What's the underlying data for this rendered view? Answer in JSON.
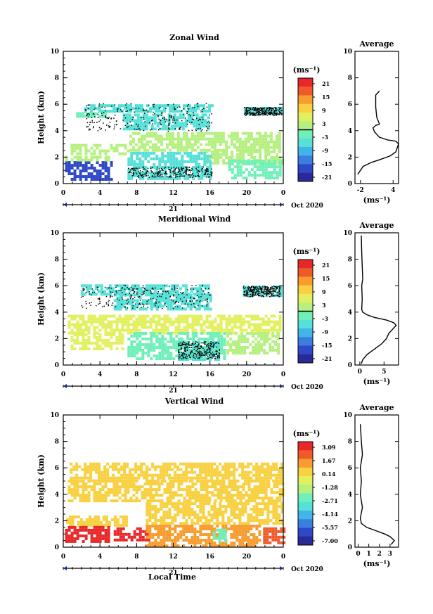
{
  "figure": {
    "x_axis_label": "Local Time",
    "date_label": "Oct 2020",
    "day_label": "21",
    "unit_label": "(ms⁻¹)",
    "average_title": "Average",
    "y_axis_label": "Height (km)"
  },
  "chart_data": [
    {
      "type": "heatmap",
      "title": "Zonal Wind",
      "ylabel": "Height (km)",
      "xlabel": "",
      "x_ticks": [
        "0",
        "4",
        "8",
        "12",
        "16",
        "20",
        "0"
      ],
      "xlim": [
        0,
        24
      ],
      "y_ticks": [
        "0",
        "2",
        "4",
        "6",
        "8",
        "10"
      ],
      "ylim": [
        0,
        10
      ],
      "colorbar": {
        "unit": "(ms⁻¹)",
        "ticks": [
          "21",
          "15",
          "9",
          "3",
          "-3",
          "-9",
          "-15",
          "-21"
        ],
        "range": [
          -24,
          24
        ]
      },
      "regions": [
        {
          "x0": 2.3,
          "x1": 16.2,
          "y0": 5.4,
          "y1": 6.0,
          "value": -6
        },
        {
          "x0": 6.5,
          "x1": 15.8,
          "y0": 4.1,
          "y1": 5.3,
          "value": -5
        },
        {
          "x0": 19.7,
          "x1": 23.8,
          "y0": 5.2,
          "y1": 5.8,
          "value": -6
        },
        {
          "x0": 1.4,
          "x1": 4.5,
          "y0": 5.0,
          "y1": 5.4,
          "value": -4
        },
        {
          "x0": 7.2,
          "x1": 23.5,
          "y0": 2.5,
          "y1": 3.9,
          "value": 0
        },
        {
          "x0": 0.8,
          "x1": 7.0,
          "y0": 2.2,
          "y1": 3.0,
          "value": 2
        },
        {
          "x0": 15.5,
          "x1": 23.9,
          "y0": 1.5,
          "y1": 2.5,
          "value": 2
        },
        {
          "x0": 7.0,
          "x1": 16.2,
          "y0": 0.3,
          "y1": 2.4,
          "value": -5
        },
        {
          "x0": 18.0,
          "x1": 23.8,
          "y0": 0.5,
          "y1": 1.8,
          "value": -4
        },
        {
          "x0": 0.2,
          "x1": 5.2,
          "y0": 0.4,
          "y1": 1.7,
          "value": -18
        },
        {
          "x0": 0.2,
          "x1": 5.0,
          "y0": 1.7,
          "y1": 2.1,
          "value": 0
        }
      ],
      "average_profile": {
        "title": "Average",
        "xlabel": "(ms⁻¹)",
        "x_ticks": [
          "-2",
          "4"
        ],
        "xlim": [
          -3,
          5
        ],
        "ylim": [
          0,
          10
        ],
        "x": [
          -2.5,
          -2.0,
          -1.5,
          0.0,
          1.5,
          3.5,
          4.5,
          5.0,
          4.5,
          3.0,
          1.5,
          0.6,
          0.3,
          0.8,
          1.5,
          1.0,
          0.8,
          0.8,
          1.5
        ],
        "y": [
          0.7,
          1.0,
          1.3,
          1.6,
          1.8,
          2.1,
          2.4,
          3.0,
          3.2,
          3.3,
          3.5,
          3.9,
          4.2,
          4.4,
          4.5,
          5.0,
          5.8,
          6.7,
          7.0
        ]
      }
    },
    {
      "type": "heatmap",
      "title": "Meridional Wind",
      "ylabel": "Height (km)",
      "xlabel": "",
      "x_ticks": [
        "0",
        "4",
        "8",
        "12",
        "16",
        "20",
        "0"
      ],
      "xlim": [
        0,
        24
      ],
      "y_ticks": [
        "0",
        "2",
        "4",
        "6",
        "8",
        "10"
      ],
      "ylim": [
        0,
        10
      ],
      "colorbar": {
        "unit": "(ms⁻¹)",
        "ticks": [
          "21",
          "15",
          "9",
          "3",
          "-3",
          "-9",
          "-15",
          "-21"
        ],
        "range": [
          -24,
          24
        ]
      },
      "regions": [
        {
          "x0": 1.9,
          "x1": 16.0,
          "y0": 5.4,
          "y1": 6.1,
          "value": -6
        },
        {
          "x0": 5.5,
          "x1": 16.0,
          "y0": 4.3,
          "y1": 5.4,
          "value": -5
        },
        {
          "x0": 19.6,
          "x1": 23.6,
          "y0": 5.2,
          "y1": 6.0,
          "value": -6
        },
        {
          "x0": 0.5,
          "x1": 23.8,
          "y0": 2.4,
          "y1": 3.8,
          "value": 4
        },
        {
          "x0": 0.8,
          "x1": 6.5,
          "y0": 1.3,
          "y1": 2.4,
          "value": 6
        },
        {
          "x0": 7.0,
          "x1": 17.5,
          "y0": 0.5,
          "y1": 2.5,
          "value": -2
        },
        {
          "x0": 17.8,
          "x1": 23.5,
          "y0": 1.0,
          "y1": 2.5,
          "value": 3
        },
        {
          "x0": 12.5,
          "x1": 17.0,
          "y0": 0.5,
          "y1": 1.8,
          "value": -7
        }
      ],
      "average_profile": {
        "title": "Average",
        "xlabel": "(ms⁻¹)",
        "x_ticks": [
          "0",
          "5"
        ],
        "xlim": [
          -1,
          8
        ],
        "ylim": [
          0,
          10
        ],
        "x": [
          0.3,
          0.6,
          1.5,
          3.0,
          4.5,
          5.5,
          6.0,
          7.5,
          7.0,
          5.5,
          3.0,
          1.5,
          0.6,
          0.4,
          0.5,
          0.4,
          0.6,
          0.4,
          0.3
        ],
        "y": [
          0.1,
          0.4,
          0.8,
          1.2,
          1.6,
          2.0,
          2.4,
          3.0,
          3.2,
          3.4,
          3.6,
          3.8,
          4.0,
          4.2,
          5.0,
          6.0,
          6.5,
          8.5,
          9.8
        ]
      }
    },
    {
      "type": "heatmap",
      "title": "Vertical Wind",
      "ylabel": "Height (km)",
      "xlabel": "Local Time",
      "x_ticks": [
        "0",
        "4",
        "8",
        "12",
        "16",
        "20",
        "0"
      ],
      "xlim": [
        0,
        24
      ],
      "y_ticks": [
        "0",
        "2",
        "4",
        "6",
        "8",
        "10"
      ],
      "ylim": [
        0,
        10
      ],
      "colorbar": {
        "unit": "(ms⁻¹)",
        "ticks": [
          "3.09",
          "1.67",
          "0.14",
          "-1.28",
          "-2.71",
          "-4.14",
          "-5.57",
          "-7.00"
        ],
        "range": [
          -7.7,
          3.8
        ]
      },
      "regions": [
        {
          "x0": 0.7,
          "x1": 24.0,
          "y0": 5.1,
          "y1": 6.4,
          "value": 0.3
        },
        {
          "x0": 0.5,
          "x1": 24.0,
          "y0": 3.4,
          "y1": 5.1,
          "value": 0.5
        },
        {
          "x0": 9.0,
          "x1": 24.0,
          "y0": 1.7,
          "y1": 3.4,
          "value": 0.6
        },
        {
          "x0": 0.3,
          "x1": 7.0,
          "y0": 1.6,
          "y1": 2.4,
          "value": 0.4
        },
        {
          "x0": 0.2,
          "x1": 5.0,
          "y0": 0.5,
          "y1": 1.6,
          "value": 3.7
        },
        {
          "x0": 5.5,
          "x1": 9.3,
          "y0": 0.5,
          "y1": 1.5,
          "value": 3.6
        },
        {
          "x0": 9.0,
          "x1": 21.5,
          "y0": 0.0,
          "y1": 1.7,
          "value": 1.1
        },
        {
          "x0": 21.8,
          "x1": 24.0,
          "y0": 0.3,
          "y1": 1.5,
          "value": 2.3
        },
        {
          "x0": 16.3,
          "x1": 17.7,
          "y0": 0.5,
          "y1": 1.4,
          "value": -2.4
        }
      ],
      "average_profile": {
        "title": "Average",
        "xlabel": "(ms⁻¹)",
        "x_ticks": [
          "0",
          "1",
          "2",
          "3"
        ],
        "xlim": [
          -0.3,
          3.8
        ],
        "ylim": [
          0,
          10
        ],
        "x": [
          3.1,
          3.4,
          3.0,
          2.5,
          1.5,
          0.8,
          0.3,
          0.2,
          0.4,
          0.2,
          0.3,
          0.2,
          0.4,
          0.3,
          0.2
        ],
        "y": [
          0.2,
          0.5,
          0.8,
          1.0,
          1.3,
          1.5,
          1.8,
          2.2,
          3.0,
          4.0,
          5.0,
          6.0,
          7.0,
          8.0,
          9.3
        ]
      }
    }
  ]
}
